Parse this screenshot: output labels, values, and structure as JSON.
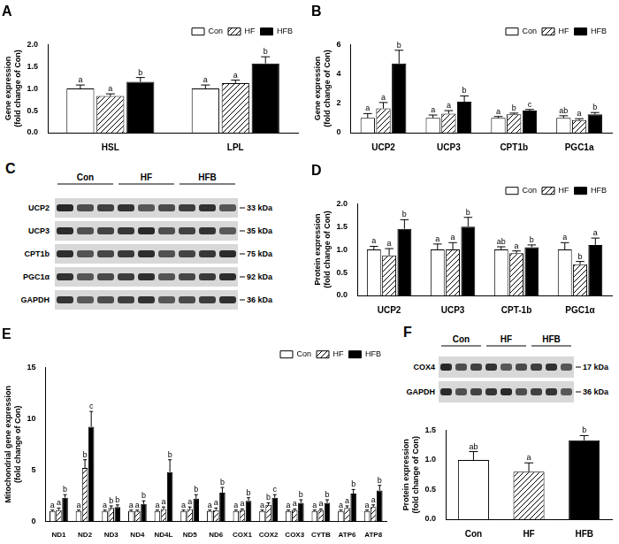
{
  "chart_data": [
    {
      "type": "bar",
      "title": "A",
      "categories": [
        "HSL",
        "LPL"
      ],
      "ylabel": [
        "Gene expression",
        "(fold change of Con)"
      ],
      "ylim": [
        0,
        2
      ],
      "yticks": [
        {
          "value": 0,
          "label": "0.0"
        },
        {
          "value": 0.5,
          "label": "0.5"
        },
        {
          "value": 1,
          "label": "1.0"
        },
        {
          "value": 1.5,
          "label": "1.5"
        },
        {
          "value": 2,
          "label": "2.0"
        }
      ],
      "grid": false,
      "legend": "top-right",
      "series": [
        {
          "name": "Con",
          "color": "#ffffff",
          "values": [
            1.0,
            1.0
          ],
          "errors": [
            0.08,
            0.08
          ],
          "letters": [
            "a",
            "a"
          ]
        },
        {
          "name": "HF",
          "color": "#ffffff",
          "values": [
            0.83,
            1.12
          ],
          "errors": [
            0.05,
            0.07
          ],
          "letters": [
            "a",
            "a"
          ]
        },
        {
          "name": "HFB",
          "color": "#000000",
          "values": [
            1.15,
            1.57
          ],
          "errors": [
            0.1,
            0.15
          ],
          "letters": [
            "b",
            "b"
          ]
        }
      ]
    },
    {
      "type": "bar",
      "title": "B",
      "categories": [
        "UCP2",
        "UCP3",
        "CPT1b",
        "PGC1a"
      ],
      "ylabel": [
        "Gene expression",
        "(fold change of Con)"
      ],
      "ylim": [
        0,
        6
      ],
      "yticks": [
        0,
        2,
        4,
        6
      ],
      "grid": false,
      "legend": "top-right",
      "series": [
        {
          "name": "Con",
          "color": "#ffffff",
          "values": [
            1.0,
            1.0,
            1.0,
            1.0
          ],
          "errors": [
            0.3,
            0.2,
            0.1,
            0.15
          ],
          "letters": [
            "a",
            "a",
            "a",
            "ab"
          ]
        },
        {
          "name": "HF",
          "color": "#ffffff",
          "values": [
            1.65,
            1.3,
            1.25,
            0.85
          ],
          "errors": [
            0.4,
            0.2,
            0.08,
            0.1
          ],
          "letters": [
            "a",
            "a",
            "b",
            "a"
          ]
        },
        {
          "name": "HFB",
          "color": "#000000",
          "values": [
            4.7,
            2.1,
            1.5,
            1.25
          ],
          "errors": [
            0.9,
            0.4,
            0.08,
            0.12
          ],
          "letters": [
            "b",
            "b",
            "c",
            "b"
          ]
        }
      ]
    },
    {
      "type": "bar",
      "title": "D",
      "categories": [
        "UCP2",
        "UCP3",
        "CPT-1b",
        "PGC1α"
      ],
      "ylabel": [
        "Protein expression",
        "(fold change of Con)"
      ],
      "ylim": [
        0,
        2
      ],
      "yticks": [
        {
          "value": 0,
          "label": "0.0"
        },
        {
          "value": 0.5,
          "label": "0.5"
        },
        {
          "value": 1,
          "label": "1.0"
        },
        {
          "value": 1.5,
          "label": "1.5"
        },
        {
          "value": 2,
          "label": "2.0"
        }
      ],
      "grid": false,
      "legend": "top-right",
      "series": [
        {
          "name": "Con",
          "color": "#ffffff",
          "values": [
            1.0,
            1.0,
            1.0,
            1.0
          ],
          "errors": [
            0.07,
            0.12,
            0.06,
            0.15
          ],
          "letters": [
            "a",
            "a",
            "ab",
            "a"
          ]
        },
        {
          "name": "HF",
          "color": "#ffffff",
          "values": [
            0.87,
            1.0,
            0.92,
            0.68
          ],
          "errors": [
            0.15,
            0.15,
            0.05,
            0.06
          ],
          "letters": [
            "a",
            "a",
            "a",
            "b"
          ]
        },
        {
          "name": "HFB",
          "color": "#000000",
          "values": [
            1.45,
            1.5,
            1.05,
            1.1
          ],
          "errors": [
            0.2,
            0.2,
            0.05,
            0.15
          ],
          "letters": [
            "b",
            "b",
            "b",
            "a"
          ]
        }
      ]
    },
    {
      "type": "bar",
      "title": "E",
      "categories": [
        "ND1",
        "ND2",
        "ND3",
        "ND4",
        "ND4L",
        "ND5",
        "ND6",
        "COX1",
        "COX2",
        "COX3",
        "CYTB",
        "ATP6",
        "ATP8"
      ],
      "ylabel": [
        "Mitochondrial gene expression",
        "(fold change of Con)"
      ],
      "ylim": [
        0,
        15
      ],
      "yticks": [
        0,
        5,
        10,
        15
      ],
      "grid": false,
      "legend": "top-right",
      "series": [
        {
          "name": "Con",
          "color": "#ffffff",
          "values": [
            1,
            1,
            1,
            1,
            1,
            1,
            1,
            1,
            1,
            1,
            1,
            1,
            1
          ],
          "errors": [
            0.1,
            0.1,
            0.1,
            0.1,
            0.1,
            0.1,
            0.1,
            0.1,
            0.1,
            0.1,
            0.1,
            0.1,
            0.1
          ],
          "letters": [
            "a",
            "a",
            "a",
            "a",
            "a",
            "a",
            "a",
            "a",
            "a",
            "a",
            "a",
            "a",
            "a"
          ]
        },
        {
          "name": "HF",
          "color": "#ffffff",
          "values": [
            1.1,
            5.2,
            1.3,
            1.0,
            1.2,
            1.2,
            1.1,
            1.1,
            1.6,
            1.1,
            1.1,
            1.3,
            1.4
          ],
          "errors": [
            0.2,
            0.8,
            0.2,
            0.1,
            0.2,
            0.2,
            0.2,
            0.1,
            0.2,
            0.1,
            0.1,
            0.2,
            0.2
          ],
          "letters": [
            "a",
            "b",
            "b",
            "a",
            "a",
            "a",
            "a",
            "a",
            "b",
            "a",
            "a",
            "a",
            "a"
          ]
        },
        {
          "name": "HFB",
          "color": "#000000",
          "values": [
            2.3,
            9.2,
            1.4,
            1.7,
            4.8,
            2.2,
            2.8,
            2.0,
            2.3,
            1.8,
            1.8,
            2.7,
            3.0
          ],
          "errors": [
            0.3,
            1.5,
            0.2,
            0.3,
            1.2,
            0.4,
            0.5,
            0.3,
            0.3,
            0.3,
            0.3,
            0.4,
            0.5
          ],
          "letters": [
            "b",
            "c",
            "b",
            "b",
            "b",
            "b",
            "b",
            "b",
            "c",
            "b",
            "b",
            "b",
            "b"
          ]
        }
      ]
    },
    {
      "type": "bar",
      "categories": [
        "Con",
        "HF",
        "HFB"
      ],
      "ylabel": [
        "Protein expression",
        "(fold change of Con)"
      ],
      "ylim": [
        0,
        1.5
      ],
      "yticks": [
        {
          "value": 0,
          "label": "0.0"
        },
        {
          "value": 0.5,
          "label": "0.5"
        },
        {
          "value": 1,
          "label": "1.0"
        },
        {
          "value": 1.5,
          "label": "1.5"
        }
      ],
      "grid": false,
      "colors": [
        "#ffffff",
        "#ffffff",
        "#000000"
      ],
      "values": [
        1.0,
        0.8,
        1.33
      ],
      "errors": [
        0.14,
        0.15,
        0.08
      ],
      "letters": [
        "ab",
        "a",
        "b"
      ]
    }
  ],
  "blots": [
    {
      "title": "C",
      "groups": [
        "Con",
        "HF",
        "HFB"
      ],
      "rows": [
        {
          "label": "UCP2",
          "size": "33 kDa"
        },
        {
          "label": "UCP3",
          "size": "35 kDa"
        },
        {
          "label": "CPT1b",
          "size": "75 kDa"
        },
        {
          "label": "PGC1α",
          "size": "92 kDa"
        },
        {
          "label": "GAPDH",
          "size": "36 kDa"
        }
      ]
    },
    {
      "title": "F",
      "groups": [
        "Con",
        "HF",
        "HFB"
      ],
      "rows": [
        {
          "label": "COX4",
          "size": "17 kDa"
        },
        {
          "label": "GAPDH",
          "size": "36 kDa"
        }
      ]
    }
  ]
}
